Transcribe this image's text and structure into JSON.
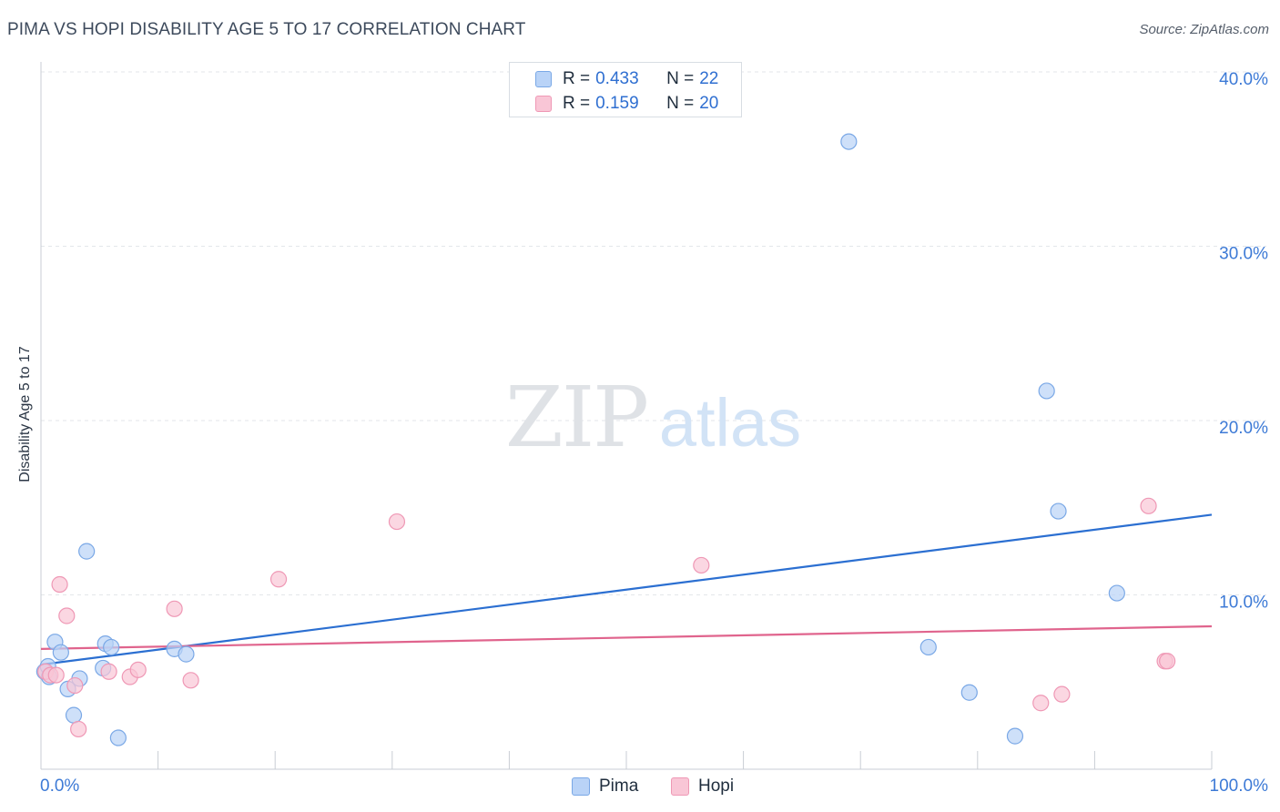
{
  "header": {
    "title": "PIMA VS HOPI DISABILITY AGE 5 TO 17 CORRELATION CHART",
    "source": "Source: ZipAtlas.com"
  },
  "watermark": {
    "zip": "ZIP",
    "atlas": "atlas"
  },
  "legend_top": {
    "rows": [
      {
        "r_label": "R =",
        "r_value": "0.433",
        "n_label": "N =",
        "n_value": "22"
      },
      {
        "r_label": "R =",
        "r_value": "0.159",
        "n_label": "N =",
        "n_value": "20"
      }
    ]
  },
  "colors": {
    "pima_fill": "#b9d3f7",
    "pima_stroke": "#7aa8e6",
    "pima_line": "#2b6fd1",
    "hopi_fill": "#f9c6d6",
    "hopi_stroke": "#ef98b5",
    "hopi_line": "#e0648d",
    "tick_label": "#3d7ad6",
    "grid": "#e3e6ea"
  },
  "chart_data": {
    "type": "scatter",
    "title": "PIMA VS HOPI DISABILITY AGE 5 TO 17 CORRELATION CHART",
    "xlabel": "",
    "ylabel": "Disability Age 5 to 17",
    "xlim": [
      0,
      100
    ],
    "ylim": [
      0,
      40
    ],
    "x_tick_labels": [
      "0.0%",
      "100.0%"
    ],
    "y_ticks": [
      10,
      20,
      30,
      40
    ],
    "y_tick_labels": [
      "10.0%",
      "20.0%",
      "30.0%",
      "40.0%"
    ],
    "grid": true,
    "legend_placement": "bottom",
    "series": [
      {
        "name": "Pima",
        "r": 0.433,
        "n": 22,
        "points": [
          [
            0.3,
            5.6
          ],
          [
            0.6,
            5.9
          ],
          [
            0.7,
            5.3
          ],
          [
            1.2,
            7.3
          ],
          [
            1.7,
            6.7
          ],
          [
            2.3,
            4.6
          ],
          [
            2.8,
            3.1
          ],
          [
            3.3,
            5.2
          ],
          [
            3.9,
            12.5
          ],
          [
            5.3,
            5.8
          ],
          [
            5.5,
            7.2
          ],
          [
            6.0,
            7.0
          ],
          [
            6.6,
            1.8
          ],
          [
            11.4,
            6.9
          ],
          [
            12.4,
            6.6
          ],
          [
            69.0,
            36.0
          ],
          [
            75.8,
            7.0
          ],
          [
            79.3,
            4.4
          ],
          [
            83.2,
            1.9
          ],
          [
            85.9,
            21.7
          ],
          [
            86.9,
            14.8
          ],
          [
            91.9,
            10.1
          ]
        ],
        "trend": [
          [
            0,
            6.0
          ],
          [
            100,
            14.6
          ]
        ]
      },
      {
        "name": "Hopi",
        "r": 0.159,
        "n": 20,
        "points": [
          [
            0.4,
            5.6
          ],
          [
            0.8,
            5.4
          ],
          [
            1.3,
            5.4
          ],
          [
            1.6,
            10.6
          ],
          [
            2.2,
            8.8
          ],
          [
            2.9,
            4.8
          ],
          [
            3.2,
            2.3
          ],
          [
            5.8,
            5.6
          ],
          [
            7.6,
            5.3
          ],
          [
            8.3,
            5.7
          ],
          [
            11.4,
            9.2
          ],
          [
            12.8,
            5.1
          ],
          [
            20.3,
            10.9
          ],
          [
            30.4,
            14.2
          ],
          [
            56.4,
            11.7
          ],
          [
            85.4,
            3.8
          ],
          [
            87.2,
            4.3
          ],
          [
            94.6,
            15.1
          ],
          [
            96.0,
            6.2
          ],
          [
            96.2,
            6.2
          ]
        ],
        "trend": [
          [
            0,
            6.9
          ],
          [
            100,
            8.2
          ]
        ]
      }
    ]
  }
}
